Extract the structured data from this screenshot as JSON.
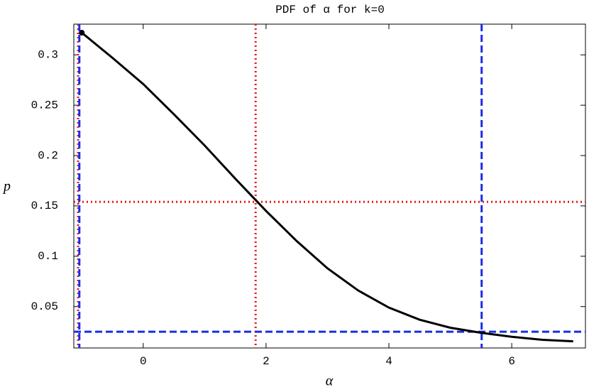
{
  "chart_data": {
    "type": "line",
    "title": "PDF of α for k=0",
    "x_label": "α",
    "y_label": "p",
    "xlim": [
      -1.13,
      7.2
    ],
    "ylim": [
      0.0089,
      0.3305
    ],
    "xticks": [
      0,
      2,
      4,
      6
    ],
    "yticks": [
      0.05,
      0.1,
      0.15,
      0.2,
      0.25,
      0.3
    ],
    "series": [
      {
        "color": "#000000",
        "x": [
          -1,
          -0.5,
          0,
          0.5,
          1,
          1.5,
          2,
          2.5,
          3,
          3.5,
          4,
          4.5,
          5,
          5.5,
          6,
          6.5,
          7
        ],
        "values": [
          0.322,
          0.297,
          0.271,
          0.241,
          0.21,
          0.177,
          0.145,
          0.115,
          0.088,
          0.066,
          0.049,
          0.037,
          0.029,
          0.024,
          0.02,
          0.017,
          0.0155
        ]
      }
    ],
    "marker": {
      "x": -1,
      "y": 0.322,
      "color": "#000000"
    },
    "reference_lines": [
      {
        "orientation": "vertical",
        "value": -1.06,
        "color": "#e41a1a",
        "style": "dotted"
      },
      {
        "orientation": "vertical",
        "value": 1.83,
        "color": "#e41a1a",
        "style": "dotted"
      },
      {
        "orientation": "horizontal",
        "value": 0.154,
        "color": "#e41a1a",
        "style": "dotted"
      },
      {
        "orientation": "vertical",
        "value": -1.04,
        "color": "#1a2ee4",
        "style": "dashed"
      },
      {
        "orientation": "vertical",
        "value": 5.51,
        "color": "#1a2ee4",
        "style": "dashed"
      },
      {
        "orientation": "horizontal",
        "value": 0.025,
        "color": "#1a2ee4",
        "style": "dashed"
      }
    ]
  }
}
